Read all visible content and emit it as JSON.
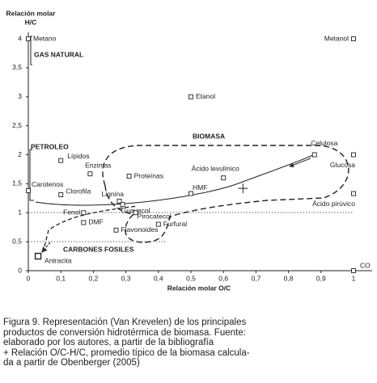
{
  "chart_data": {
    "type": "scatter",
    "y_label": [
      "Relación molar",
      "H/C"
    ],
    "x_label": "Relación molar O/C",
    "xlim": [
      0,
      1.05
    ],
    "ylim": [
      0,
      4.3
    ],
    "xticks": [
      0,
      {
        "value": 0.1,
        "label": "0,1"
      },
      {
        "value": 0.2,
        "label": "0,2"
      },
      {
        "value": 0.3,
        "label": "0,3"
      },
      {
        "value": 0.4,
        "label": "0,4"
      },
      {
        "value": 0.5,
        "label": "0,5"
      },
      {
        "value": 0.6,
        "label": "0,6"
      },
      {
        "value": 0.7,
        "label": "0,7"
      },
      {
        "value": 0.8,
        "label": "0,8"
      },
      {
        "value": 0.9,
        "label": "0,9"
      },
      1
    ],
    "yticks": [
      0,
      {
        "value": 0.5,
        "label": "0,5"
      },
      1,
      {
        "value": 1.5,
        "label": "1,5"
      },
      2,
      {
        "value": 2.5,
        "label": "2,5"
      },
      3,
      {
        "value": 3.5,
        "label": "3,5"
      },
      4
    ],
    "point_labels": [
      "Metano",
      "Metanol",
      "Etanol",
      "Lípidos",
      "Enzimas",
      "Proteínas",
      "Ácido levulínico",
      "Celulosa",
      "Glucosa",
      "Ácido pirúvico",
      "Carotenos",
      "Clorofila",
      "Lignina",
      "Guayacol",
      "HMF",
      "Fenol",
      "DMF",
      "Pirocatecol",
      "Furfural",
      "Flavonoides",
      "Antracita",
      "CO"
    ],
    "x": [
      0,
      1,
      0.5,
      0.1,
      0.19,
      0.31,
      0.6,
      0.88,
      1,
      1,
      0,
      0.1,
      0.28,
      0.29,
      0.5,
      0.17,
      0.17,
      0.33,
      0.4,
      0.27,
      0.03,
      1
    ],
    "values": [
      4,
      4,
      3,
      1.9,
      1.67,
      1.63,
      1.6,
      2.0,
      2.0,
      1.33,
      1.38,
      1.31,
      1.2,
      1.14,
      1.33,
      1.0,
      0.83,
      1.0,
      0.8,
      0.7,
      0.25,
      0
    ],
    "mean_point": {
      "x": 0.66,
      "y": 1.42
    },
    "region_labels": [
      "GAS NATURAL",
      "PETROLEO",
      "BIOMASA",
      "CARBONES FOSILES"
    ],
    "caption": [
      "Figura 9. Representación (Van Krevelen) de los principales",
      "productos de conversión hidrotérmica de biomasa. Fuente:",
      "elaborado por los autores, a partir de la bibliografía",
      "+ Relación O/C-H/C, promedio típico de la biomasa calcula-",
      "da a partir de Obenberger (2005)"
    ]
  }
}
